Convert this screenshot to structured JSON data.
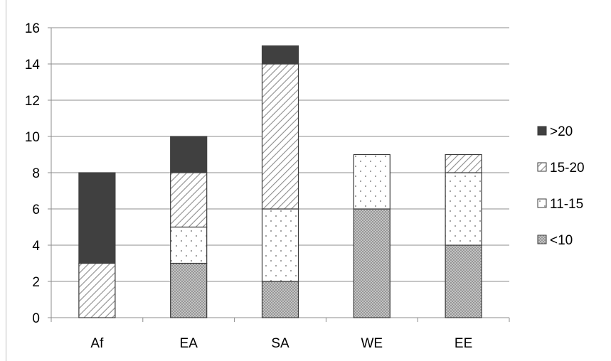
{
  "chart_data": {
    "type": "bar",
    "stacked": true,
    "title": "",
    "xlabel": "",
    "ylabel": "",
    "categories": [
      "Af",
      "EA",
      "SA",
      "WE",
      "EE"
    ],
    "ylim": [
      0,
      16
    ],
    "yticks": [
      0,
      2,
      4,
      6,
      8,
      10,
      12,
      14,
      16
    ],
    "grid": true,
    "legend_position": "right",
    "series": [
      {
        "name": "<10",
        "values": [
          0,
          3,
          2,
          6,
          4
        ],
        "pattern": "crosshatch",
        "color": "#a6a6a6"
      },
      {
        "name": "11-15",
        "values": [
          0,
          2,
          4,
          3,
          4
        ],
        "pattern": "dots",
        "color": "#bfbfbf"
      },
      {
        "name": "15-20",
        "values": [
          3,
          3,
          8,
          0,
          1
        ],
        "pattern": "diagonal",
        "color": "#808080"
      },
      {
        "name": ">20",
        "values": [
          5,
          2,
          1,
          0,
          0
        ],
        "pattern": "solid",
        "color": "#404040"
      }
    ],
    "legend_order": [
      ">20",
      "15-20",
      "11-15",
      "<10"
    ]
  }
}
